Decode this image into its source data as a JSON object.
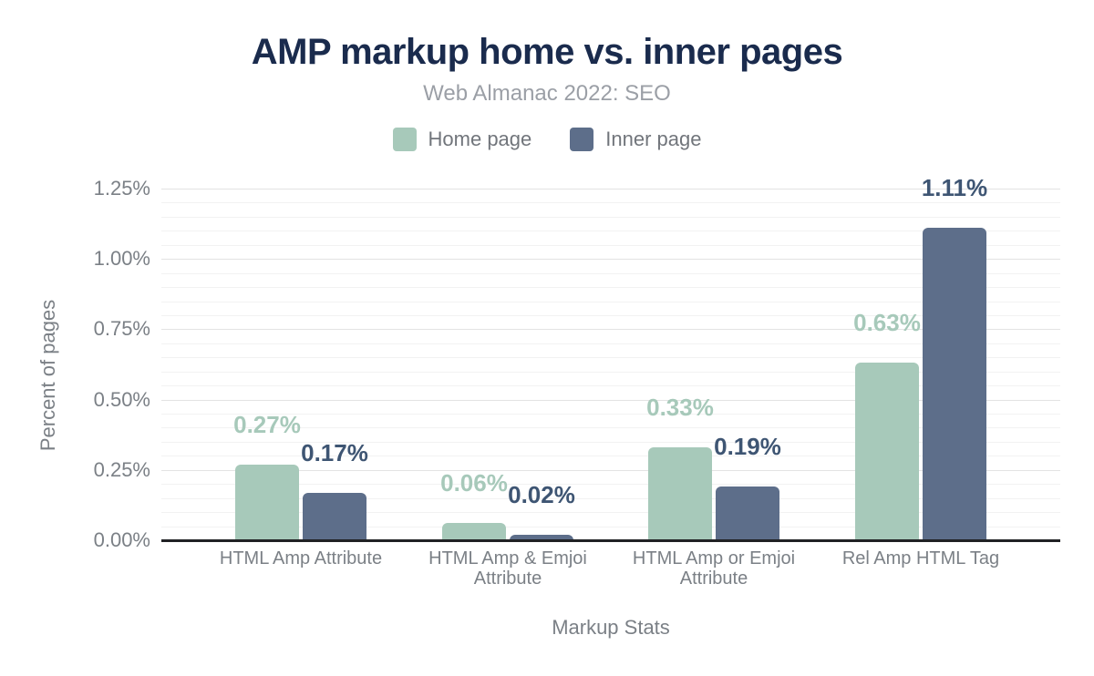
{
  "chart_data": {
    "type": "bar",
    "title": "AMP markup home vs. inner pages",
    "subtitle": "Web Almanac 2022: SEO",
    "xlabel": "Markup Stats",
    "ylabel": "Percent of pages",
    "categories": [
      "HTML Amp Attribute",
      "HTML Amp & Emjoi Attribute",
      "HTML Amp or Emjoi Attribute",
      "Rel Amp HTML Tag"
    ],
    "series": [
      {
        "name": "Home page",
        "color": "#A7C9BA",
        "label_color": "#A7C9BA",
        "values": [
          0.27,
          0.06,
          0.33,
          0.63
        ],
        "labels": [
          "0.27%",
          "0.06%",
          "0.33%",
          "0.63%"
        ]
      },
      {
        "name": "Inner page",
        "color": "#5D6E8A",
        "label_color": "#3E5573",
        "values": [
          0.17,
          0.02,
          0.19,
          1.11
        ],
        "labels": [
          "0.17%",
          "0.02%",
          "0.19%",
          "1.11%"
        ]
      }
    ],
    "ylim": [
      0,
      1.25
    ],
    "yticks": [
      "0.00%",
      "0.25%",
      "0.50%",
      "0.75%",
      "1.00%",
      "1.25%"
    ],
    "ytick_step_major": 0.25,
    "ytick_step_minor": 0.05,
    "grid": "horizontal",
    "legend_position": "top"
  },
  "colors": {
    "background": "#FFFFFF",
    "title": "#1A2B4D",
    "subtitle": "#9B9FA6",
    "legend_text": "#71757B",
    "axis_text": "#7B8086",
    "grid_major": "#E3E3E3",
    "grid_minor": "#F2F2F2",
    "axis_line": "#202124"
  }
}
